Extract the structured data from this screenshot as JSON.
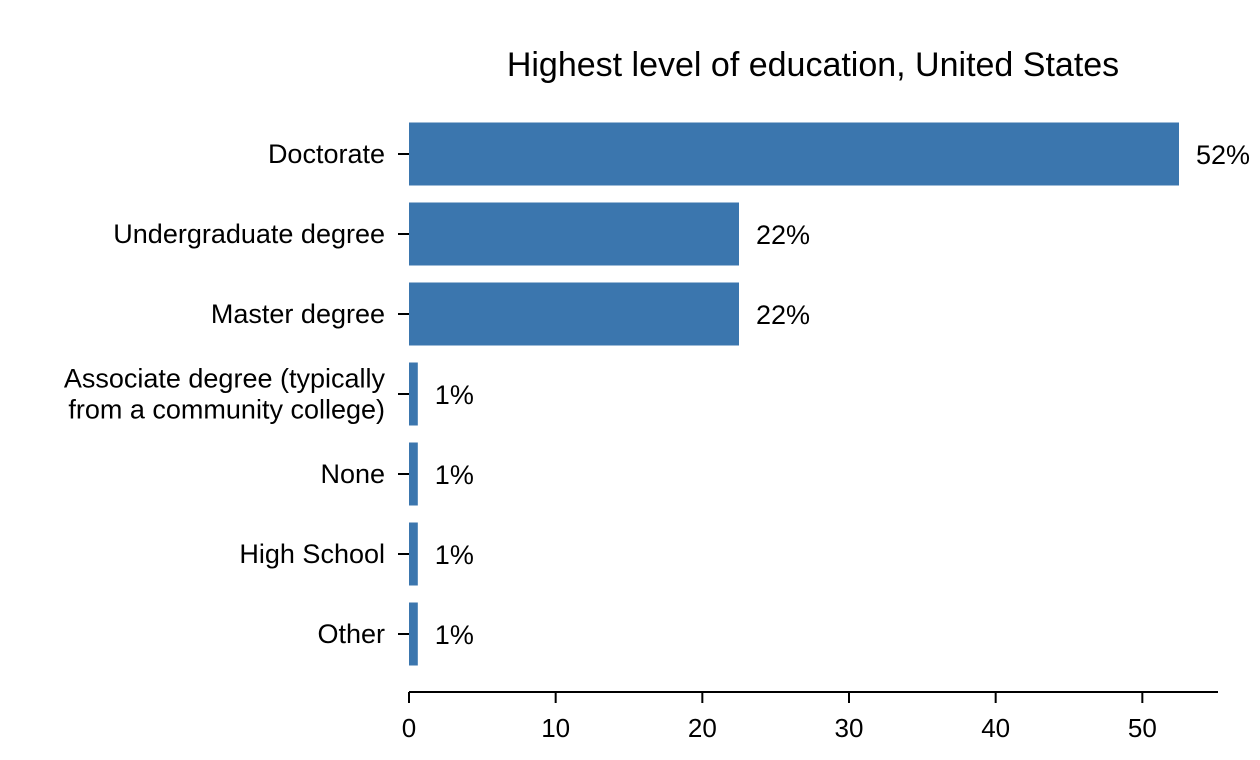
{
  "chart_data": {
    "type": "bar",
    "orientation": "horizontal",
    "title": "Highest level of education, United States",
    "xlabel": "",
    "ylabel": "",
    "categories": [
      "Doctorate",
      "Undergraduate degree",
      "Master degree",
      "Associate degree (typically from a community college)",
      "None",
      "High School",
      "Other"
    ],
    "category_lines": [
      [
        "Doctorate"
      ],
      [
        "Undergraduate degree"
      ],
      [
        "Master degree"
      ],
      [
        "Associate degree (typically",
        "from a community college)"
      ],
      [
        "None"
      ],
      [
        "High School"
      ],
      [
        "Other"
      ]
    ],
    "values": [
      52.5,
      22.5,
      22.5,
      0.6,
      0.6,
      0.6,
      0.6
    ],
    "data_labels": [
      "52%",
      "22%",
      "22%",
      "1%",
      "1%",
      "1%",
      "1%"
    ],
    "xlim": [
      0,
      55
    ],
    "xticks": [
      0,
      10,
      20,
      30,
      40,
      50
    ],
    "grid": false,
    "legend": "none",
    "bar_color": "#3b76ae"
  }
}
